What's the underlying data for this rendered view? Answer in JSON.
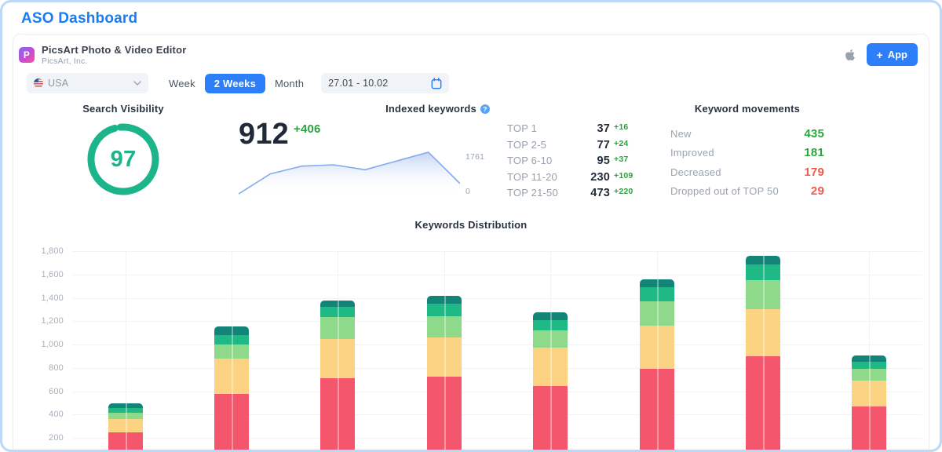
{
  "page": {
    "title": "ASO Dashboard"
  },
  "app_header": {
    "app_name": "PicsArt Photo & Video Editor",
    "developer": "PicsArt, Inc.",
    "app_icon_letter": "P",
    "platform_icon": "apple-icon",
    "add_app_label": "App",
    "accent_color": "#2D7FF9"
  },
  "filters": {
    "country": {
      "value": "USA",
      "icon": "usa-flag-icon"
    },
    "period_tabs": [
      {
        "label": "Week",
        "active": false
      },
      {
        "label": "2 Weeks",
        "active": true
      },
      {
        "label": "Month",
        "active": false
      }
    ],
    "date_range": "27.01 - 10.02"
  },
  "widgets": {
    "search_visibility": {
      "title": "Search Visibility",
      "value": 97,
      "max": 100,
      "color": "#1CB48B"
    },
    "indexed_keywords": {
      "title": "Indexed keywords",
      "info_icon": "?",
      "value": "912",
      "delta": "+406",
      "y_max_label": "1761",
      "y_min_label": "0"
    },
    "top_ranks": {
      "rows": [
        {
          "label": "TOP 1",
          "value": "37",
          "delta": "+16"
        },
        {
          "label": "TOP 2-5",
          "value": "77",
          "delta": "+24"
        },
        {
          "label": "TOP 6-10",
          "value": "95",
          "delta": "+37"
        },
        {
          "label": "TOP 11-20",
          "value": "230",
          "delta": "+109"
        },
        {
          "label": "TOP 21-50",
          "value": "473",
          "delta": "+220"
        }
      ]
    },
    "keyword_movements": {
      "title": "Keyword movements",
      "rows": [
        {
          "label": "New",
          "value": "435",
          "direction": "up"
        },
        {
          "label": "Improved",
          "value": "181",
          "direction": "up"
        },
        {
          "label": "Decreased",
          "value": "179",
          "direction": "down"
        },
        {
          "label": "Dropped out of TOP 50",
          "value": "29",
          "direction": "down"
        }
      ],
      "up_color": "#27A83C",
      "down_color": "#F4584C"
    }
  },
  "chart_data": [
    {
      "type": "area",
      "name": "indexed-keywords-sparkline",
      "title": "Indexed keywords trend",
      "values": [
        30,
        860,
        1185,
        1240,
        1035,
        1400,
        1761,
        460
      ],
      "ylim": [
        0,
        1761
      ],
      "line_color": "#84ABEB",
      "fill_color": "rgba(138,171,235,0.5)"
    },
    {
      "type": "bar",
      "name": "keywords-distribution",
      "title": "Keywords Distribution",
      "stacked": true,
      "ylim": [
        0,
        1800
      ],
      "grid": true,
      "y_tick_values": [
        1800,
        1600,
        1400,
        1200,
        1000,
        800,
        600,
        400,
        200,
        0
      ],
      "y_tick_labels": [
        "1,800",
        "1,600",
        "1,400",
        "1,200",
        "1,000",
        "800",
        "600",
        "400",
        "200",
        "0"
      ],
      "segment_order_bottom_to_top": [
        "red",
        "yellow",
        "light_green",
        "green",
        "teal"
      ],
      "segment_colors": {
        "red": "#F4566E",
        "yellow": "#FBD383",
        "light_green": "#8FDA8A",
        "green": "#1FB985",
        "teal": "#128478"
      },
      "bars": [
        {
          "red": 250,
          "yellow": 110,
          "light_green": 60,
          "green": 35,
          "teal": 45
        },
        {
          "red": 580,
          "yellow": 300,
          "light_green": 120,
          "green": 80,
          "teal": 75
        },
        {
          "red": 710,
          "yellow": 340,
          "light_green": 185,
          "green": 90,
          "teal": 50
        },
        {
          "red": 725,
          "yellow": 335,
          "light_green": 180,
          "green": 110,
          "teal": 70
        },
        {
          "red": 645,
          "yellow": 330,
          "light_green": 145,
          "green": 90,
          "teal": 65
        },
        {
          "red": 790,
          "yellow": 370,
          "light_green": 210,
          "green": 120,
          "teal": 65
        },
        {
          "red": 900,
          "yellow": 405,
          "light_green": 250,
          "green": 130,
          "teal": 75
        },
        {
          "red": 470,
          "yellow": 225,
          "light_green": 95,
          "green": 65,
          "teal": 55
        }
      ]
    }
  ]
}
